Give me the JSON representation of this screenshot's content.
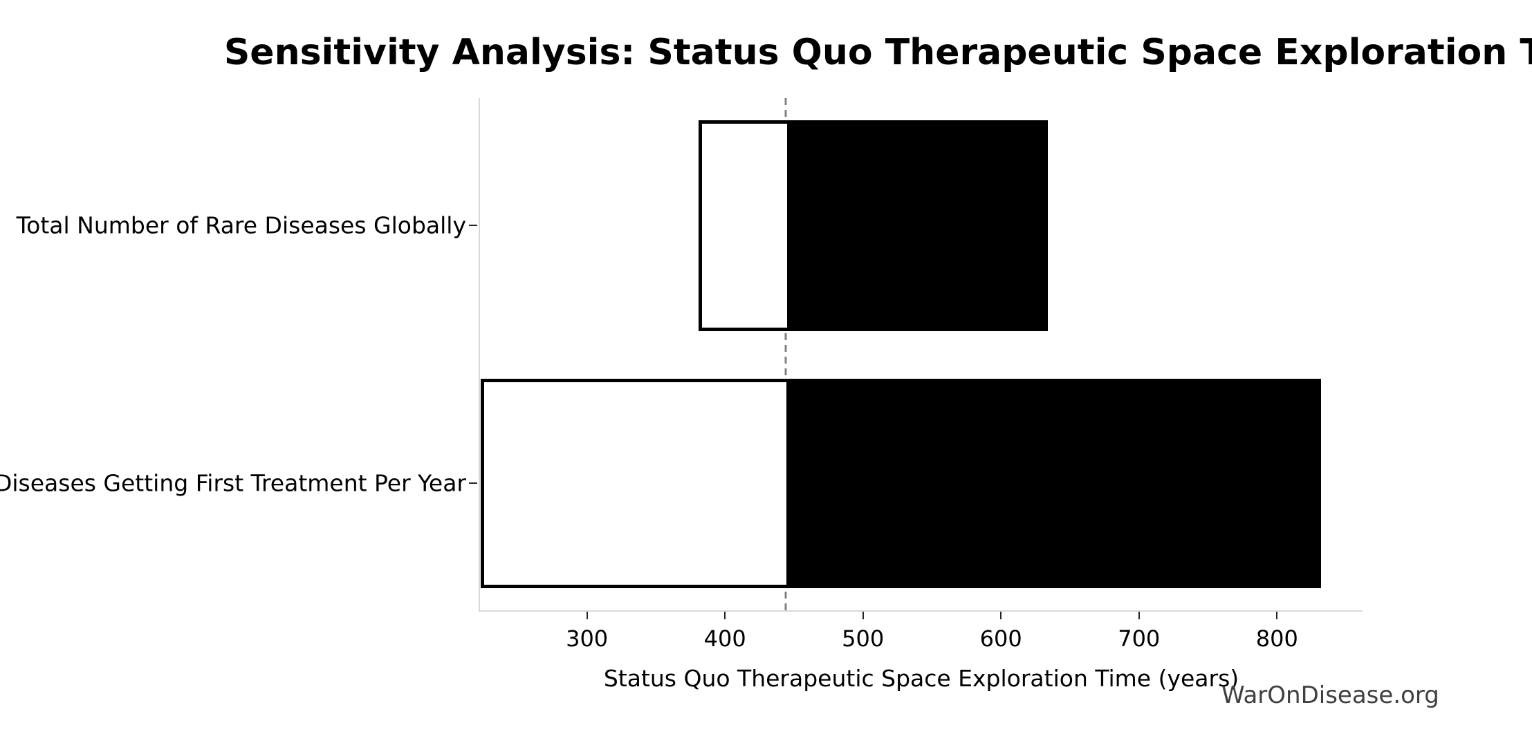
{
  "watermark": "WarOnDisease.org",
  "chart_data": {
    "type": "bar",
    "subtype": "tornado-sensitivity",
    "orientation": "horizontal",
    "title": "Sensitivity Analysis: Status Quo Therapeutic Space Exploration Time",
    "xlabel": "Status Quo Therapeutic Space Exploration Time (years)",
    "ylabel": "",
    "categories": [
      "Total Number of Rare Diseases Globally",
      "Diseases Getting First Treatment Per Year"
    ],
    "bars": [
      {
        "label": "Total Number of Rare Diseases Globally",
        "low": 380,
        "high": 633
      },
      {
        "label": "Diseases Getting First Treatment Per Year",
        "low": 222,
        "high": 831
      }
    ],
    "baseline": 443,
    "x_ticks": [
      300,
      400,
      500,
      600,
      700,
      800
    ],
    "xlim": [
      221.5,
      861
    ],
    "grid": false,
    "legend": "none",
    "colors": {
      "low_side_fill": "#ffffff",
      "high_side_fill": "#000000",
      "bar_edge": "#000000",
      "baseline_line": "#808080",
      "spine": "#d9d9d9",
      "watermark": "#404040"
    }
  }
}
